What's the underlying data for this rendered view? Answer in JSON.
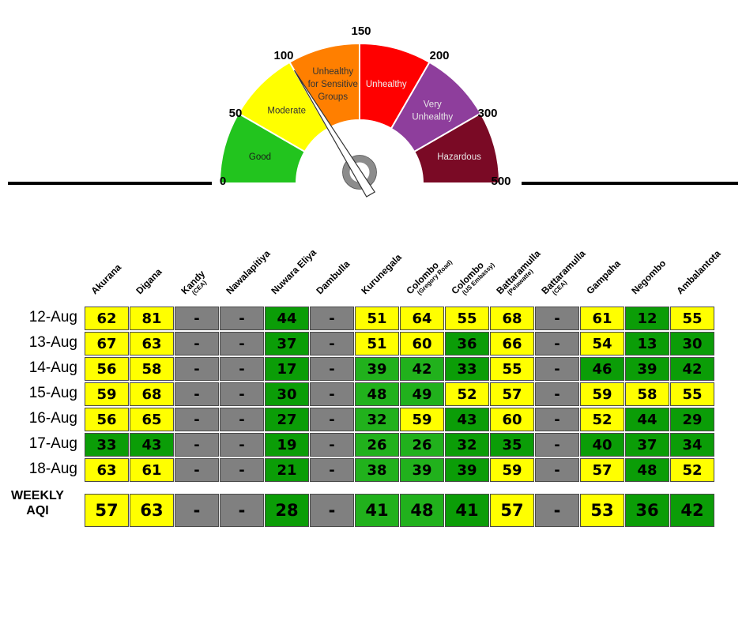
{
  "gauge": {
    "ticks": [
      "0",
      "50",
      "100",
      "150",
      "200",
      "300",
      "500"
    ],
    "categories": [
      {
        "label": "Good",
        "color": "#22c41e",
        "text_color": "#1a1a1a"
      },
      {
        "label": "Moderate",
        "color": "#ffff00",
        "text_color": "#333333"
      },
      {
        "label": "Unhealthy for Sensitive Groups",
        "color": "#ff7f00",
        "text_color": "#333333"
      },
      {
        "label": "Unhealthy",
        "color": "#ff0000",
        "text_color": "#f0f0f0"
      },
      {
        "label": "Very Unhealthy",
        "color": "#8e3e9c",
        "text_color": "#e8e8e8"
      },
      {
        "label": "Hazardous",
        "color": "#7a0a25",
        "text_color": "#e8e8e8"
      }
    ],
    "needle_value": 100
  },
  "colors": {
    "good": "#0b9d07",
    "good_light": "#21b11c",
    "moderate": "#ffff00",
    "no_data": "#808080"
  },
  "chart_data": {
    "type": "table",
    "stations": [
      {
        "name": "Akurana",
        "sub": ""
      },
      {
        "name": "Digana",
        "sub": ""
      },
      {
        "name": "Kandy",
        "sub": "(CEA)"
      },
      {
        "name": "Nawalapitiya",
        "sub": ""
      },
      {
        "name": "Nuwara Eliya",
        "sub": ""
      },
      {
        "name": "Dambulla",
        "sub": ""
      },
      {
        "name": "Kurunegala",
        "sub": ""
      },
      {
        "name": "Colombo",
        "sub": "(Gregory Road)"
      },
      {
        "name": "Colombo",
        "sub": "(US Embassy)"
      },
      {
        "name": "Battaramulla",
        "sub": "(Pelawatte)"
      },
      {
        "name": "Battaramulla",
        "sub": "(CEA)"
      },
      {
        "name": "Gampaha",
        "sub": ""
      },
      {
        "name": "Negombo",
        "sub": ""
      },
      {
        "name": "Ambalantota",
        "sub": ""
      }
    ],
    "rows": [
      {
        "date": "12-Aug",
        "values": [
          "62",
          "81",
          "-",
          "-",
          "44",
          "-",
          "51",
          "64",
          "55",
          "68",
          "-",
          "61",
          "12",
          "55"
        ]
      },
      {
        "date": "13-Aug",
        "values": [
          "67",
          "63",
          "-",
          "-",
          "37",
          "-",
          "51",
          "60",
          "36",
          "66",
          "-",
          "54",
          "13",
          "30"
        ]
      },
      {
        "date": "14-Aug",
        "values": [
          "56",
          "58",
          "-",
          "-",
          "17",
          "-",
          "39",
          "42",
          "33",
          "55",
          "-",
          "46",
          "39",
          "42"
        ]
      },
      {
        "date": "15-Aug",
        "values": [
          "59",
          "68",
          "-",
          "-",
          "30",
          "-",
          "48",
          "49",
          "52",
          "57",
          "-",
          "59",
          "58",
          "55"
        ]
      },
      {
        "date": "16-Aug",
        "values": [
          "56",
          "65",
          "-",
          "-",
          "27",
          "-",
          "32",
          "59",
          "43",
          "60",
          "-",
          "52",
          "44",
          "29"
        ]
      },
      {
        "date": "17-Aug",
        "values": [
          "33",
          "43",
          "-",
          "-",
          "19",
          "-",
          "26",
          "26",
          "32",
          "35",
          "-",
          "40",
          "37",
          "34"
        ]
      },
      {
        "date": "18-Aug",
        "values": [
          "63",
          "61",
          "-",
          "-",
          "21",
          "-",
          "38",
          "39",
          "39",
          "59",
          "-",
          "57",
          "48",
          "52"
        ]
      }
    ],
    "weekly": {
      "label_line1": "WEEKLY",
      "label_line2": "AQI",
      "values": [
        "57",
        "63",
        "-",
        "-",
        "28",
        "-",
        "41",
        "48",
        "41",
        "57",
        "-",
        "53",
        "36",
        "42"
      ]
    }
  }
}
